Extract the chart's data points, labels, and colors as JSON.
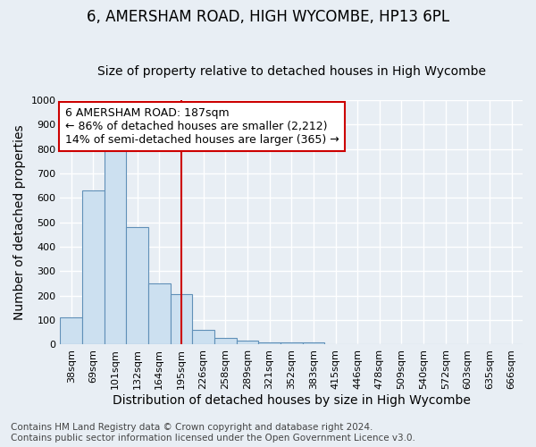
{
  "title": "6, AMERSHAM ROAD, HIGH WYCOMBE, HP13 6PL",
  "subtitle": "Size of property relative to detached houses in High Wycombe",
  "xlabel": "Distribution of detached houses by size in High Wycombe",
  "ylabel": "Number of detached properties",
  "categories": [
    "38sqm",
    "69sqm",
    "101sqm",
    "132sqm",
    "164sqm",
    "195sqm",
    "226sqm",
    "258sqm",
    "289sqm",
    "321sqm",
    "352sqm",
    "383sqm",
    "415sqm",
    "446sqm",
    "478sqm",
    "509sqm",
    "540sqm",
    "572sqm",
    "603sqm",
    "635sqm",
    "666sqm"
  ],
  "values": [
    110,
    630,
    805,
    480,
    250,
    205,
    60,
    28,
    15,
    10,
    10,
    10,
    0,
    0,
    0,
    0,
    0,
    0,
    0,
    0,
    0
  ],
  "bar_color": "#cce0f0",
  "bar_edge_color": "#6090b8",
  "red_line_index": 5,
  "annotation_text_line1": "6 AMERSHAM ROAD: 187sqm",
  "annotation_text_line2": "← 86% of detached houses are smaller (2,212)",
  "annotation_text_line3": "14% of semi-detached houses are larger (365) →",
  "annotation_box_color": "#ffffff",
  "annotation_box_edge_color": "#cc0000",
  "ylim": [
    0,
    1000
  ],
  "yticks": [
    0,
    100,
    200,
    300,
    400,
    500,
    600,
    700,
    800,
    900,
    1000
  ],
  "footer_line1": "Contains HM Land Registry data © Crown copyright and database right 2024.",
  "footer_line2": "Contains public sector information licensed under the Open Government Licence v3.0.",
  "bg_color": "#e8eef4",
  "plot_bg_color": "#e8eef4",
  "grid_color": "#ffffff",
  "title_fontsize": 12,
  "subtitle_fontsize": 10,
  "axis_label_fontsize": 10,
  "tick_fontsize": 8,
  "footer_fontsize": 7.5,
  "annotation_fontsize": 9
}
